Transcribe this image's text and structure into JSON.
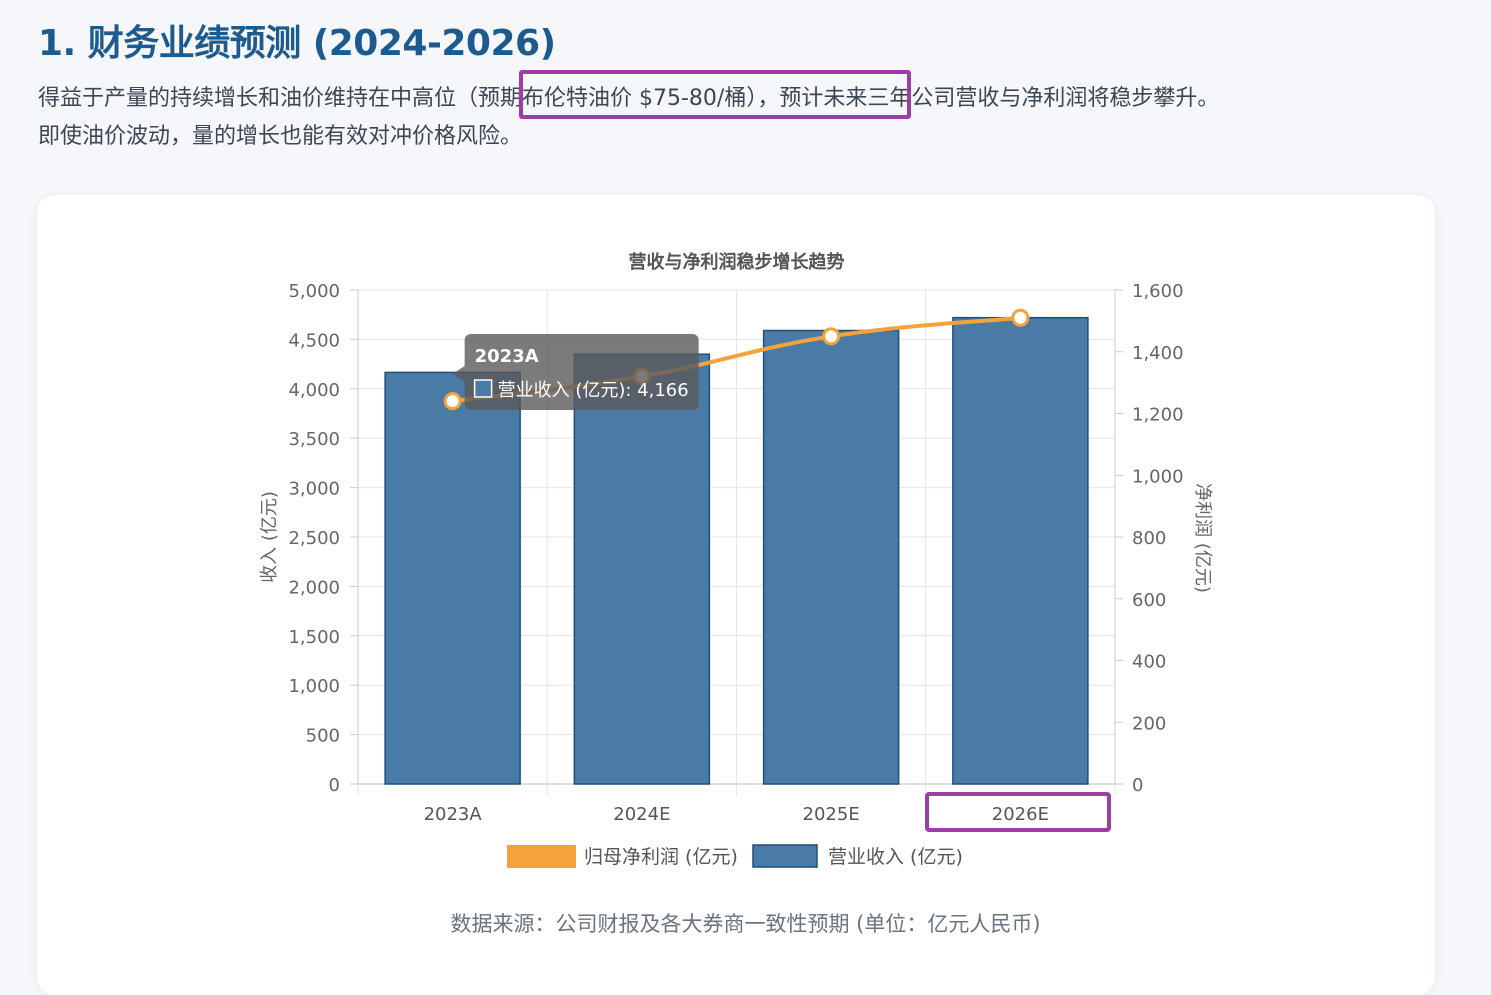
{
  "page": {
    "heading": "1. 财务业绩预测 (2024-2026)",
    "intro_line1": "得益于产量的持续增长和油价维持在中高位（预期布伦特油价 $75-80/桶），预计未来三年公司营收与净利润将稳步攀升。",
    "intro_line2": "即使油价波动，量的增长也能有效对冲价格风险。",
    "source_note": "数据来源：公司财报及各大券商一致性预期 (单位：亿元人民币)",
    "highlight_color": "#9b3fa6"
  },
  "chart_data": {
    "type": "bar",
    "title": "营收与净利润稳步增长趋势",
    "categories": [
      "2023A",
      "2024E",
      "2025E",
      "2026E"
    ],
    "series": [
      {
        "name": "营业收入 (亿元)",
        "type": "bar",
        "axis": "left",
        "values": [
          4166,
          4350,
          4590,
          4720
        ],
        "fill": "#4a7ba7",
        "stroke": "#1f4e79"
      },
      {
        "name": "归母净利润 (亿元)",
        "type": "line",
        "axis": "right",
        "values": [
          1240,
          1320,
          1450,
          1510
        ],
        "color": "#f6a23a"
      }
    ],
    "y_left": {
      "label": "收入 (亿元)",
      "range": [
        0,
        5000
      ],
      "ticks": [
        0,
        500,
        1000,
        1500,
        2000,
        2500,
        3000,
        3500,
        4000,
        4500,
        5000
      ]
    },
    "y_right": {
      "label": "净利润 (亿元)",
      "range": [
        0,
        1600
      ],
      "ticks": [
        0,
        200,
        400,
        600,
        800,
        1000,
        1200,
        1400,
        1600
      ]
    },
    "legend": {
      "placement": "bottom",
      "order": [
        "归母净利润 (亿元)",
        "营业收入 (亿元)"
      ]
    },
    "grid": true,
    "tooltip": {
      "category": "2023A",
      "series": "营业收入 (亿元)",
      "value_text": "4,166"
    }
  }
}
